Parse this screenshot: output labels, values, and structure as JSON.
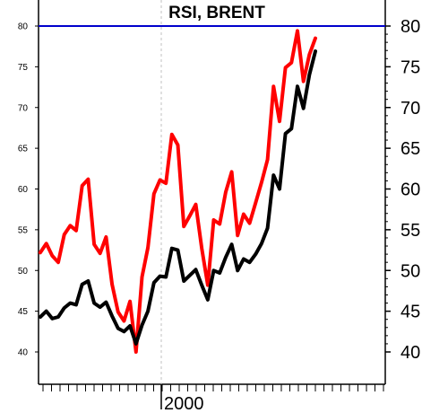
{
  "chart_data": {
    "type": "line",
    "title": "RSI, BRENT",
    "xlabel": "",
    "ylabel": "",
    "x_tick_label": "2000",
    "ylim": [
      37,
      83
    ],
    "y_ticks": [
      40,
      45,
      50,
      55,
      60,
      65,
      70,
      75,
      80
    ],
    "reference_line": {
      "value": 80,
      "color": "#0000cc"
    },
    "vertical_marker": {
      "at_label": "2000",
      "style": "dashed",
      "color": "#c0c0c0"
    },
    "grid": false,
    "series": [
      {
        "color": "#ff0000",
        "values": [
          52.2,
          53.3,
          51.8,
          51.0,
          54.4,
          55.5,
          54.9,
          60.4,
          61.2,
          53.2,
          52.1,
          54.1,
          48.3,
          44.9,
          43.8,
          46.2,
          40.0,
          49.2,
          52.8,
          59.4,
          61.1,
          60.7,
          66.7,
          65.4,
          55.4,
          56.7,
          58.1,
          52.7,
          48.2,
          56.2,
          55.7,
          59.6,
          62.1,
          54.3,
          56.9,
          55.8,
          58.3,
          60.8,
          63.6,
          72.6,
          68.3,
          74.9,
          75.5,
          79.4,
          73.2,
          76.5,
          78.5
        ]
      },
      {
        "color": "#000000",
        "values": [
          44.3,
          45.0,
          44.1,
          44.3,
          45.4,
          46.0,
          45.8,
          48.3,
          48.7,
          46.0,
          45.5,
          46.1,
          44.4,
          42.9,
          42.5,
          43.2,
          41.0,
          43.3,
          45.0,
          48.5,
          49.3,
          49.2,
          52.7,
          52.5,
          48.7,
          49.4,
          50.1,
          48.2,
          46.4,
          50.0,
          49.7,
          51.6,
          53.2,
          50.0,
          51.4,
          51.0,
          52.0,
          53.3,
          55.2,
          61.7,
          60.0,
          66.8,
          67.4,
          72.6,
          69.9,
          74.0,
          76.9
        ]
      }
    ]
  }
}
